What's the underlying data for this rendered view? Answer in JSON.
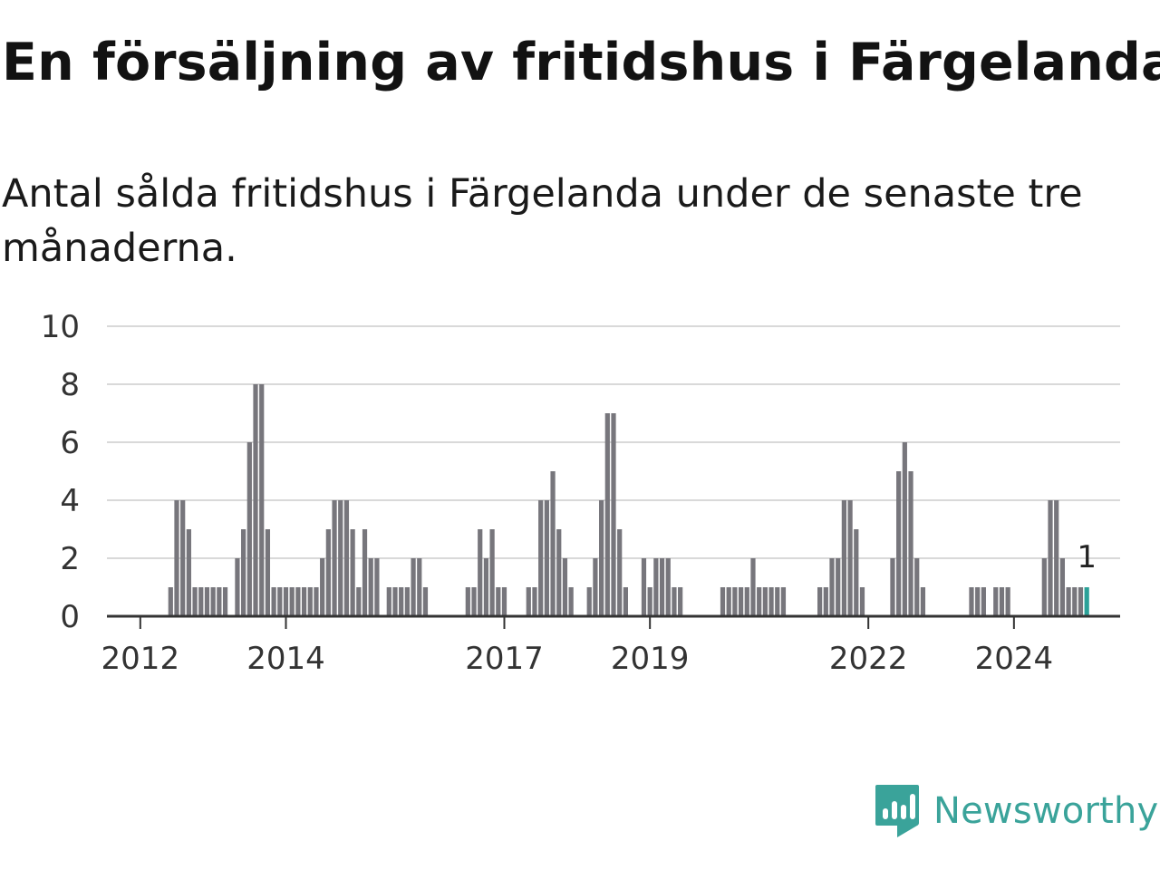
{
  "header": {
    "title": "En försäljning av fritidshus i Färgelanda",
    "subtitle": "Antal sålda fritidshus i Färgelanda under de senaste tre månaderna."
  },
  "branding": {
    "name": "Newsworthy",
    "logo_icon": "newsworthy-logo-icon"
  },
  "colors": {
    "bar": "#77767c",
    "highlight": "#2ba198",
    "grid": "#d9d9d9",
    "axis": "#333333",
    "text": "#333333",
    "brand": "#3aa39a"
  },
  "chart_data": {
    "type": "bar",
    "title": "En försäljning av fritidshus i Färgelanda",
    "subtitle": "Antal sålda fritidshus i Färgelanda under de senaste tre månaderna.",
    "xlabel": "",
    "ylabel": "",
    "ylim": [
      0,
      10
    ],
    "yticks": [
      0,
      2,
      4,
      6,
      8,
      10
    ],
    "grid": true,
    "x_start": "2011-08",
    "x_end": "2025-06",
    "x_ticks": [
      {
        "label": "2012",
        "date": "2012-01"
      },
      {
        "label": "2014",
        "date": "2014-01"
      },
      {
        "label": "2017",
        "date": "2017-01"
      },
      {
        "label": "2019",
        "date": "2019-01"
      },
      {
        "label": "2022",
        "date": "2022-01"
      },
      {
        "label": "2024",
        "date": "2024-01"
      }
    ],
    "series": [
      {
        "values": [
          [
            "2012-06",
            1
          ],
          [
            "2012-07",
            4
          ],
          [
            "2012-08",
            4
          ],
          [
            "2012-09",
            3
          ],
          [
            "2012-10",
            1
          ],
          [
            "2012-11",
            1
          ],
          [
            "2012-12",
            1
          ],
          [
            "2013-01",
            1
          ],
          [
            "2013-02",
            1
          ],
          [
            "2013-03",
            1
          ],
          [
            "2013-05",
            2
          ],
          [
            "2013-06",
            3
          ],
          [
            "2013-07",
            6
          ],
          [
            "2013-08",
            8
          ],
          [
            "2013-09",
            8
          ],
          [
            "2013-10",
            3
          ],
          [
            "2013-11",
            1
          ],
          [
            "2013-12",
            1
          ],
          [
            "2014-01",
            1
          ],
          [
            "2014-02",
            1
          ],
          [
            "2014-03",
            1
          ],
          [
            "2014-04",
            1
          ],
          [
            "2014-05",
            1
          ],
          [
            "2014-06",
            1
          ],
          [
            "2014-07",
            2
          ],
          [
            "2014-08",
            3
          ],
          [
            "2014-09",
            4
          ],
          [
            "2014-10",
            4
          ],
          [
            "2014-11",
            4
          ],
          [
            "2014-12",
            3
          ],
          [
            "2015-01",
            1
          ],
          [
            "2015-02",
            3
          ],
          [
            "2015-03",
            2
          ],
          [
            "2015-04",
            2
          ],
          [
            "2015-06",
            1
          ],
          [
            "2015-07",
            1
          ],
          [
            "2015-08",
            1
          ],
          [
            "2015-09",
            1
          ],
          [
            "2015-10",
            2
          ],
          [
            "2015-11",
            2
          ],
          [
            "2015-12",
            1
          ],
          [
            "2016-07",
            1
          ],
          [
            "2016-08",
            1
          ],
          [
            "2016-09",
            3
          ],
          [
            "2016-10",
            2
          ],
          [
            "2016-11",
            3
          ],
          [
            "2016-12",
            1
          ],
          [
            "2017-01",
            1
          ],
          [
            "2017-05",
            1
          ],
          [
            "2017-06",
            1
          ],
          [
            "2017-07",
            4
          ],
          [
            "2017-08",
            4
          ],
          [
            "2017-09",
            5
          ],
          [
            "2017-10",
            3
          ],
          [
            "2017-11",
            2
          ],
          [
            "2017-12",
            1
          ],
          [
            "2018-03",
            1
          ],
          [
            "2018-04",
            2
          ],
          [
            "2018-05",
            4
          ],
          [
            "2018-06",
            7
          ],
          [
            "2018-07",
            7
          ],
          [
            "2018-08",
            3
          ],
          [
            "2018-09",
            1
          ],
          [
            "2018-12",
            2
          ],
          [
            "2019-01",
            1
          ],
          [
            "2019-02",
            2
          ],
          [
            "2019-03",
            2
          ],
          [
            "2019-04",
            2
          ],
          [
            "2019-05",
            1
          ],
          [
            "2019-06",
            1
          ],
          [
            "2020-01",
            1
          ],
          [
            "2020-02",
            1
          ],
          [
            "2020-03",
            1
          ],
          [
            "2020-04",
            1
          ],
          [
            "2020-05",
            1
          ],
          [
            "2020-06",
            2
          ],
          [
            "2020-07",
            1
          ],
          [
            "2020-08",
            1
          ],
          [
            "2020-09",
            1
          ],
          [
            "2020-10",
            1
          ],
          [
            "2020-11",
            1
          ],
          [
            "2021-05",
            1
          ],
          [
            "2021-06",
            1
          ],
          [
            "2021-07",
            2
          ],
          [
            "2021-08",
            2
          ],
          [
            "2021-09",
            4
          ],
          [
            "2021-10",
            4
          ],
          [
            "2021-11",
            3
          ],
          [
            "2021-12",
            1
          ],
          [
            "2022-05",
            2
          ],
          [
            "2022-06",
            5
          ],
          [
            "2022-07",
            6
          ],
          [
            "2022-08",
            5
          ],
          [
            "2022-09",
            2
          ],
          [
            "2022-10",
            1
          ],
          [
            "2023-06",
            1
          ],
          [
            "2023-07",
            1
          ],
          [
            "2023-08",
            1
          ],
          [
            "2023-10",
            1
          ],
          [
            "2023-11",
            1
          ],
          [
            "2023-12",
            1
          ],
          [
            "2024-06",
            2
          ],
          [
            "2024-07",
            4
          ],
          [
            "2024-08",
            4
          ],
          [
            "2024-09",
            2
          ],
          [
            "2024-10",
            1
          ],
          [
            "2024-11",
            1
          ],
          [
            "2024-12",
            1
          ],
          [
            "2025-01",
            1
          ]
        ]
      }
    ],
    "highlight": {
      "date": "2025-01",
      "value": 1,
      "label": "1"
    }
  }
}
